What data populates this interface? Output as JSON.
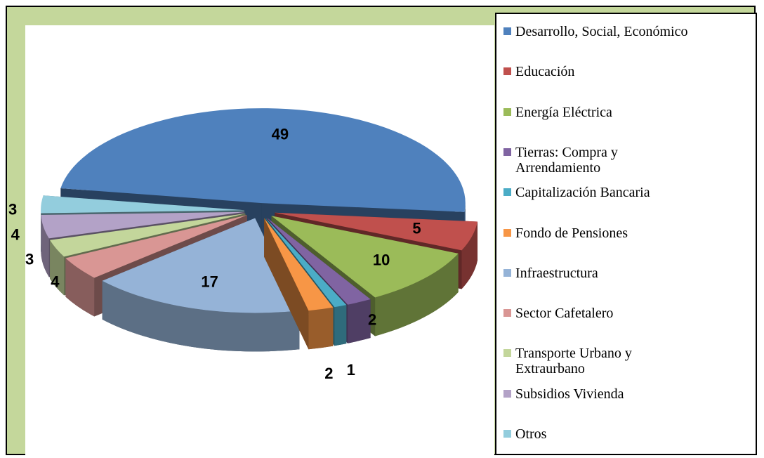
{
  "chart_data": {
    "type": "pie",
    "categories": [
      "Desarrollo, Social, Económico",
      "Educación",
      "Energía Eléctrica",
      "Tierras: Compra y Arrendamiento",
      "Capitalización Bancaria",
      "Fondo de Pensiones",
      "Infraestructura",
      "Sector Cafetalero",
      "Transporte Urbano y Extraurbano",
      "Subsidios Vivienda",
      "Otros"
    ],
    "values": [
      49,
      5,
      10,
      2,
      1,
      2,
      17,
      4,
      3,
      4,
      3
    ],
    "colors": [
      "#4f81bd",
      "#c0504d",
      "#9bbb59",
      "#8064a2",
      "#4bacc6",
      "#f79646",
      "#95b3d7",
      "#d99694",
      "#c3d69b",
      "#b3a2c7",
      "#93cddd"
    ],
    "legend": "right"
  }
}
